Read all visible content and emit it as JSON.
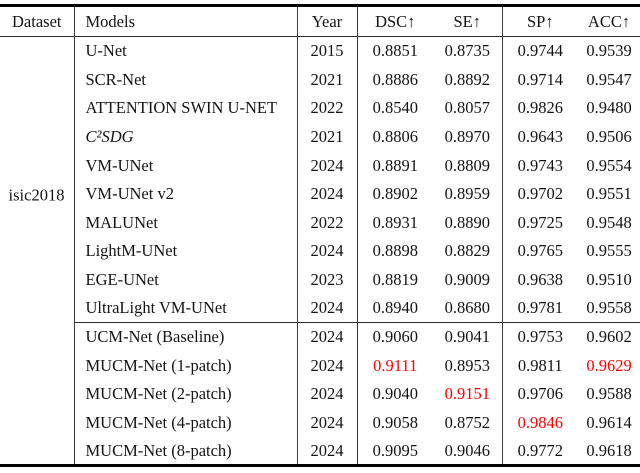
{
  "table": {
    "headers": {
      "dataset": "Dataset",
      "models": "Models",
      "year": "Year",
      "metrics": [
        "DSC↑",
        "SE↑",
        "SP↑",
        "ACC↑"
      ]
    },
    "dataset_label": "isic2018",
    "highlight_color": "#ff0000",
    "groups": [
      {
        "rows": [
          {
            "model": "U-Net",
            "year": "2015",
            "values": [
              "0.8851",
              "0.8735",
              "0.9744",
              "0.9539"
            ],
            "red": []
          },
          {
            "model": "SCR-Net",
            "year": "2021",
            "values": [
              "0.8886",
              "0.8892",
              "0.9714",
              "0.9547"
            ],
            "red": []
          },
          {
            "model": "ATTENTION SWIN U-NET",
            "year": "2022",
            "values": [
              "0.8540",
              "0.8057",
              "0.9826",
              "0.9480"
            ],
            "red": []
          },
          {
            "model": "C²SDG",
            "year": "2021",
            "values": [
              "0.8806",
              "0.8970",
              "0.9643",
              "0.9506"
            ],
            "red": [],
            "math": true
          },
          {
            "model": "VM-UNet",
            "year": "2024",
            "values": [
              "0.8891",
              "0.8809",
              "0.9743",
              "0.9554"
            ],
            "red": []
          },
          {
            "model": "VM-UNet v2",
            "year": "2024",
            "values": [
              "0.8902",
              "0.8959",
              "0.9702",
              "0.9551"
            ],
            "red": []
          },
          {
            "model": "MALUNet",
            "year": "2022",
            "values": [
              "0.8931",
              "0.8890",
              "0.9725",
              "0.9548"
            ],
            "red": []
          },
          {
            "model": "LightM-UNet",
            "year": "2024",
            "values": [
              "0.8898",
              "0.8829",
              "0.9765",
              "0.9555"
            ],
            "red": []
          },
          {
            "model": "EGE-UNet",
            "year": "2023",
            "values": [
              "0.8819",
              "0.9009",
              "0.9638",
              "0.9510"
            ],
            "red": []
          },
          {
            "model": "UltraLight VM-UNet",
            "year": "2024",
            "values": [
              "0.8940",
              "0.8680",
              "0.9781",
              "0.9558"
            ],
            "red": []
          }
        ]
      },
      {
        "rows": [
          {
            "model": "UCM-Net (Baseline)",
            "year": "2024",
            "values": [
              "0.9060",
              "0.9041",
              "0.9753",
              "0.9602"
            ],
            "red": []
          },
          {
            "model": "MUCM-Net (1-patch)",
            "year": "2024",
            "values": [
              "0.9111",
              "0.8953",
              "0.9811",
              "0.9629"
            ],
            "red": [
              0,
              3
            ]
          },
          {
            "model": "MUCM-Net (2-patch)",
            "year": "2024",
            "values": [
              "0.9040",
              "0.9151",
              "0.9706",
              "0.9588"
            ],
            "red": [
              1
            ]
          },
          {
            "model": "MUCM-Net (4-patch)",
            "year": "2024",
            "values": [
              "0.9058",
              "0.8752",
              "0.9846",
              "0.9614"
            ],
            "red": [
              2
            ]
          },
          {
            "model": "MUCM-Net (8-patch)",
            "year": "2024",
            "values": [
              "0.9095",
              "0.9046",
              "0.9772",
              "0.9618"
            ],
            "red": []
          }
        ]
      }
    ]
  }
}
